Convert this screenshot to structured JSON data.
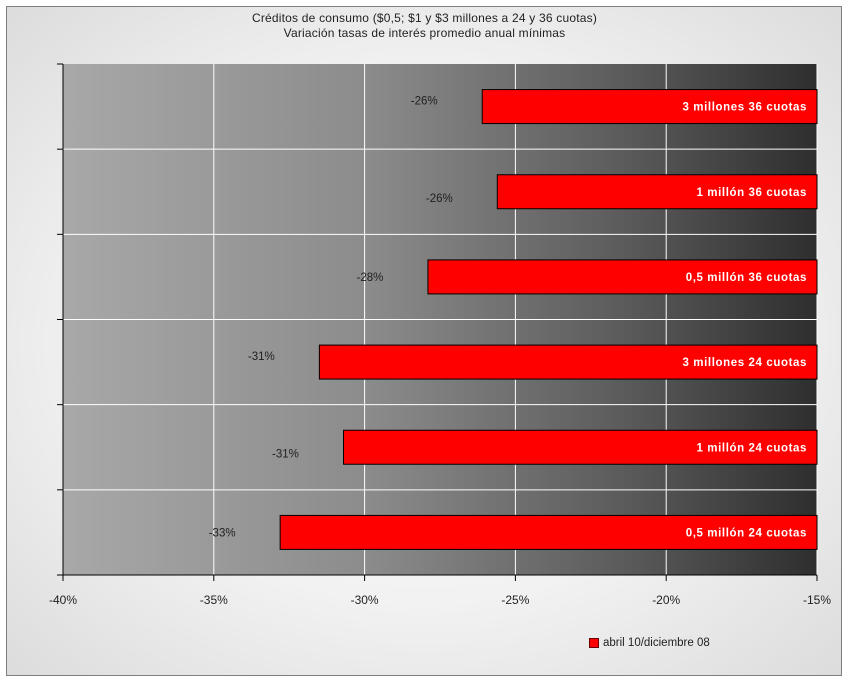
{
  "chart_data": {
    "type": "bar",
    "orientation": "horizontal",
    "title": "Créditos de consumo ($0,5; $1 y $3 millones a 24 y 36 cuotas)",
    "subtitle": "Variación tasas de interés promedio anual mínimas",
    "categories": [
      "3 millones 36 cuotas",
      "1 millón 36 cuotas",
      "0,5 millón 36 cuotas",
      "3 millones 24 cuotas",
      "1 millón 24 cuotas",
      "0,5 millón 24 cuotas"
    ],
    "series": [
      {
        "name": "abril 10/diciembre 08",
        "color": "#ff0000",
        "values": [
          -26.1,
          -25.6,
          -27.9,
          -31.5,
          -30.7,
          -32.8
        ],
        "data_labels": [
          "-26%",
          "-26%",
          "-28%",
          "-31%",
          "-31%",
          "-33%"
        ]
      }
    ],
    "xlim": [
      -40,
      -15
    ],
    "x_ticks": [
      -40,
      -35,
      -30,
      -25,
      -20,
      -15
    ],
    "x_tick_labels": [
      "-40%",
      "-35%",
      "-30%",
      "-25%",
      "-20%",
      "-15%"
    ],
    "xlabel": "",
    "ylabel": "",
    "grid": true,
    "legend_position": "bottom-right",
    "plot_background": "gradient gray to dark gray"
  }
}
